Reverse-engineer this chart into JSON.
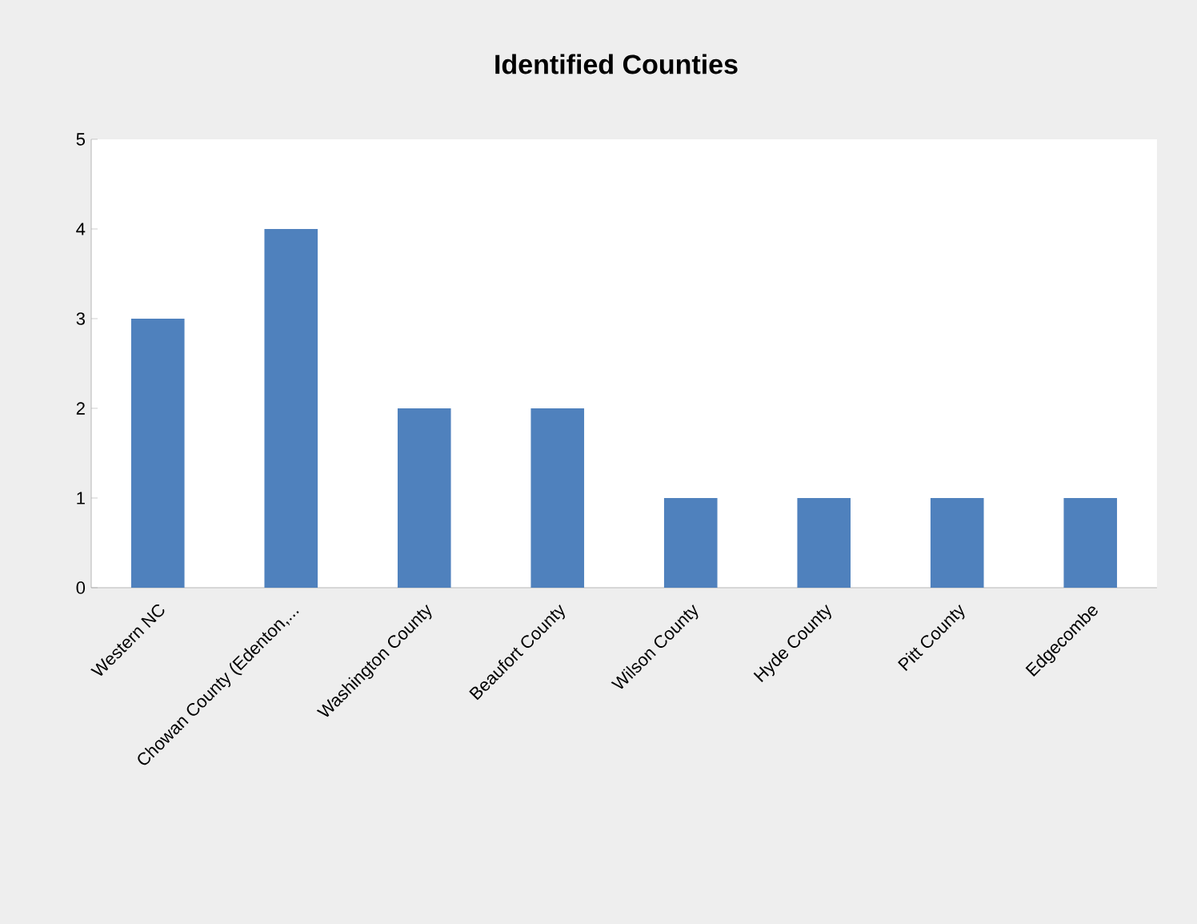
{
  "chart_data": {
    "type": "bar",
    "title": "Identified Counties",
    "categories": [
      "Western NC",
      "Chowan County (Edenton,...",
      "Washington County",
      "Beaufort County",
      "Wilson County",
      "Hyde County",
      "Pitt County",
      "Edgecombe"
    ],
    "values": [
      3,
      4,
      2,
      2,
      1,
      1,
      1,
      1
    ],
    "color": "#4f81bd",
    "ylim": [
      0,
      5
    ],
    "yticks": [
      0,
      1,
      2,
      3,
      4,
      5
    ]
  }
}
